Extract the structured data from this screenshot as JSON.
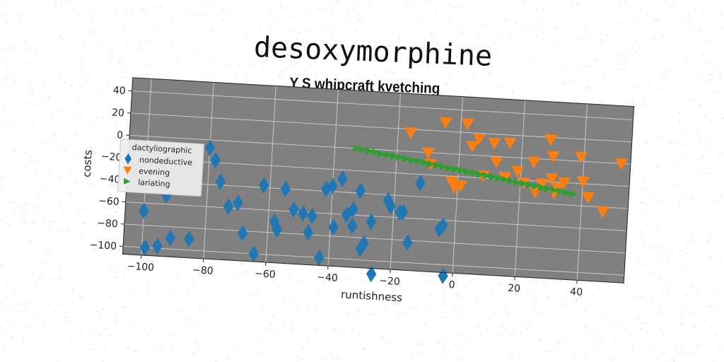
{
  "chart_data": {
    "type": "scatter",
    "title": "desoxymorphine",
    "subtitle": "Y S whipcraft kvetching",
    "xlabel": "runtishness",
    "ylabel": "costs",
    "xlim": [
      -106,
      55
    ],
    "ylim": [
      -107,
      52
    ],
    "xticks": [
      -100,
      -80,
      -60,
      -40,
      -20,
      0,
      20,
      40
    ],
    "yticks": [
      40,
      20,
      0,
      -20,
      -40,
      -60,
      -80,
      -100
    ],
    "xtick_labels": [
      "−100",
      "−80",
      "−60",
      "−40",
      "−20",
      "0",
      "20",
      "40"
    ],
    "ytick_labels": [
      "40",
      "20",
      "0",
      "−20",
      "−40",
      "−60",
      "−80",
      "−100"
    ],
    "grid": true,
    "plot_background": "#808080",
    "legend": {
      "title": "dactyliographic",
      "placement": "left"
    },
    "series": [
      {
        "name": "nondeductive",
        "marker": "diamond",
        "color": "#1f77b4",
        "points": [
          [
            -100,
            -67
          ],
          [
            -99,
            -100
          ],
          [
            -95,
            -98
          ],
          [
            -93,
            -52
          ],
          [
            -91,
            -90
          ],
          [
            -85,
            -90
          ],
          [
            -80,
            -7
          ],
          [
            -78,
            -18
          ],
          [
            -76,
            -37
          ],
          [
            -73,
            -59
          ],
          [
            -70,
            -55
          ],
          [
            -68,
            -82
          ],
          [
            -64,
            -100
          ],
          [
            -62,
            -38
          ],
          [
            -58,
            -70
          ],
          [
            -57,
            -77
          ],
          [
            -55,
            -40
          ],
          [
            -52,
            -58
          ],
          [
            -49,
            -61
          ],
          [
            -47,
            -78
          ],
          [
            -46,
            -63
          ],
          [
            -43,
            -100
          ],
          [
            -42,
            -38
          ],
          [
            -40,
            -35
          ],
          [
            -39,
            -72
          ],
          [
            -37,
            -28
          ],
          [
            -35,
            -60
          ],
          [
            -33,
            -70
          ],
          [
            -33,
            -55
          ],
          [
            -31,
            -38
          ],
          [
            -30,
            -90
          ],
          [
            -29,
            -85
          ],
          [
            -27,
            -65
          ],
          [
            -26,
            -112
          ],
          [
            -22,
            -45
          ],
          [
            -21,
            -50
          ],
          [
            -18,
            -55
          ],
          [
            -17,
            -55
          ],
          [
            -15,
            -82
          ],
          [
            -12,
            -28
          ],
          [
            -5,
            -68
          ],
          [
            -4,
            -65
          ],
          [
            -3,
            -110
          ]
        ]
      },
      {
        "name": "evening",
        "marker": "triangle-down",
        "color": "#ff7f0e",
        "points": [
          [
            -16,
            17
          ],
          [
            -10,
            0
          ],
          [
            -9,
            -10
          ],
          [
            -5,
            28
          ],
          [
            -2,
            -25
          ],
          [
            -1,
            -30
          ],
          [
            1,
            -28
          ],
          [
            2,
            28
          ],
          [
            4,
            8
          ],
          [
            6,
            15
          ],
          [
            8,
            -18
          ],
          [
            11,
            12
          ],
          [
            12,
            -5
          ],
          [
            15,
            -18
          ],
          [
            16,
            13
          ],
          [
            19,
            -12
          ],
          [
            21,
            -22
          ],
          [
            24,
            -3
          ],
          [
            25,
            -30
          ],
          [
            27,
            -22
          ],
          [
            29,
            18
          ],
          [
            30,
            -17
          ],
          [
            30,
            3
          ],
          [
            31,
            -30
          ],
          [
            32,
            -25
          ],
          [
            34,
            -20
          ],
          [
            39,
            4
          ],
          [
            40,
            -18
          ],
          [
            42,
            -32
          ],
          [
            47,
            -44
          ],
          [
            52,
            0
          ]
        ]
      },
      {
        "name": "lariating",
        "marker": "triangle-right",
        "color": "#2ca02c",
        "points": [
          [
            -33,
            0
          ],
          [
            -31,
            -0.8
          ],
          [
            -29,
            -1.7
          ],
          [
            -27,
            -2.5
          ],
          [
            -25,
            -3.4
          ],
          [
            -23,
            -4.2
          ],
          [
            -21,
            -5.1
          ],
          [
            -19,
            -5.9
          ],
          [
            -17,
            -6.8
          ],
          [
            -15,
            -7.6
          ],
          [
            -13,
            -8.5
          ],
          [
            -11,
            -9.3
          ],
          [
            -9,
            -10.2
          ],
          [
            -7,
            -11.0
          ],
          [
            -5,
            -11.9
          ],
          [
            -3,
            -12.7
          ],
          [
            -1,
            -13.6
          ],
          [
            1,
            -14.4
          ],
          [
            3,
            -15.3
          ],
          [
            5,
            -16.1
          ],
          [
            7,
            -17.0
          ],
          [
            9,
            -17.8
          ],
          [
            11,
            -18.7
          ],
          [
            13,
            -19.5
          ],
          [
            15,
            -20.4
          ],
          [
            17,
            -21.2
          ],
          [
            19,
            -22.1
          ],
          [
            21,
            -22.9
          ],
          [
            23,
            -23.8
          ],
          [
            25,
            -24.6
          ],
          [
            27,
            -25.5
          ],
          [
            29,
            -26.3
          ],
          [
            31,
            -27.2
          ],
          [
            33,
            -28.0
          ],
          [
            35,
            -28.9
          ],
          [
            37,
            -29.7
          ]
        ]
      }
    ]
  }
}
